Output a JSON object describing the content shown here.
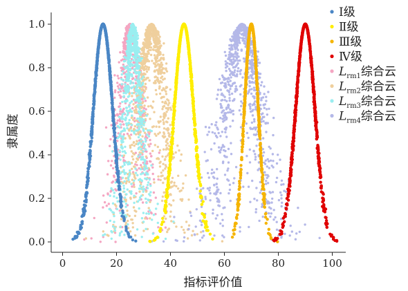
{
  "chart_data": {
    "type": "scatter",
    "xlabel": "指标评价值",
    "ylabel": "隶属度",
    "xlim": [
      -4,
      104
    ],
    "ylim": [
      -0.02,
      1.05
    ],
    "xticks": [
      0,
      20,
      40,
      60,
      80,
      100
    ],
    "yticks": [
      0.0,
      0.2,
      0.4,
      0.6,
      0.8,
      1.0
    ],
    "xtick_labels": [
      "0",
      "20",
      "40",
      "60",
      "80",
      "100"
    ],
    "ytick_labels": [
      "0.0",
      "0.2",
      "0.4",
      "0.6",
      "0.8",
      "1.0"
    ],
    "legend_position": "top-right",
    "series": [
      {
        "name": "Ⅰ级",
        "label_main": "Ⅰ级",
        "label_sub": "",
        "label_tail": "",
        "color": "#4a86c5",
        "ex": 15,
        "en": 3.6,
        "he": 0.1,
        "drops": 900,
        "size": 2.2
      },
      {
        "name": "Ⅱ级",
        "label_main": "Ⅱ级",
        "label_sub": "",
        "label_tail": "",
        "color": "#ffee00",
        "ex": 45,
        "en": 3.6,
        "he": 0.1,
        "drops": 900,
        "size": 2.2
      },
      {
        "name": "Ⅲ级",
        "label_main": "Ⅲ级",
        "label_sub": "",
        "label_tail": "",
        "color": "#f5b400",
        "ex": 70,
        "en": 2.6,
        "he": 0.08,
        "drops": 700,
        "size": 2.2
      },
      {
        "name": "Ⅳ级",
        "label_main": "Ⅳ级",
        "label_sub": "",
        "label_tail": "",
        "color": "#e00000",
        "ex": 90,
        "en": 3.6,
        "he": 0.1,
        "drops": 900,
        "size": 2.2
      },
      {
        "name": "Lrm1综合云",
        "label_main": "L",
        "label_sub": "rm1",
        "label_tail": "综合云",
        "color": "#f4a6c2",
        "ex": 25,
        "en": 3.6,
        "he": 1.5,
        "drops": 700,
        "size": 1.7
      },
      {
        "name": "Lrm2综合云",
        "label_main": "L",
        "label_sub": "rm2",
        "label_tail": "综合云",
        "color": "#efcf9d",
        "ex": 33,
        "en": 4.5,
        "he": 1.9,
        "drops": 1100,
        "size": 1.7
      },
      {
        "name": "Lrm3综合云",
        "label_main": "L",
        "label_sub": "rm3",
        "label_tail": "综合云",
        "color": "#9aeef0",
        "ex": 26,
        "en": 2.6,
        "he": 1.2,
        "drops": 900,
        "size": 1.7
      },
      {
        "name": "Lrm4综合云",
        "label_main": "L",
        "label_sub": "rm4",
        "label_tail": "综合云",
        "color": "#b4b8e8",
        "ex": 66.5,
        "en": 5.8,
        "he": 2.4,
        "drops": 1100,
        "size": 1.7
      }
    ]
  }
}
